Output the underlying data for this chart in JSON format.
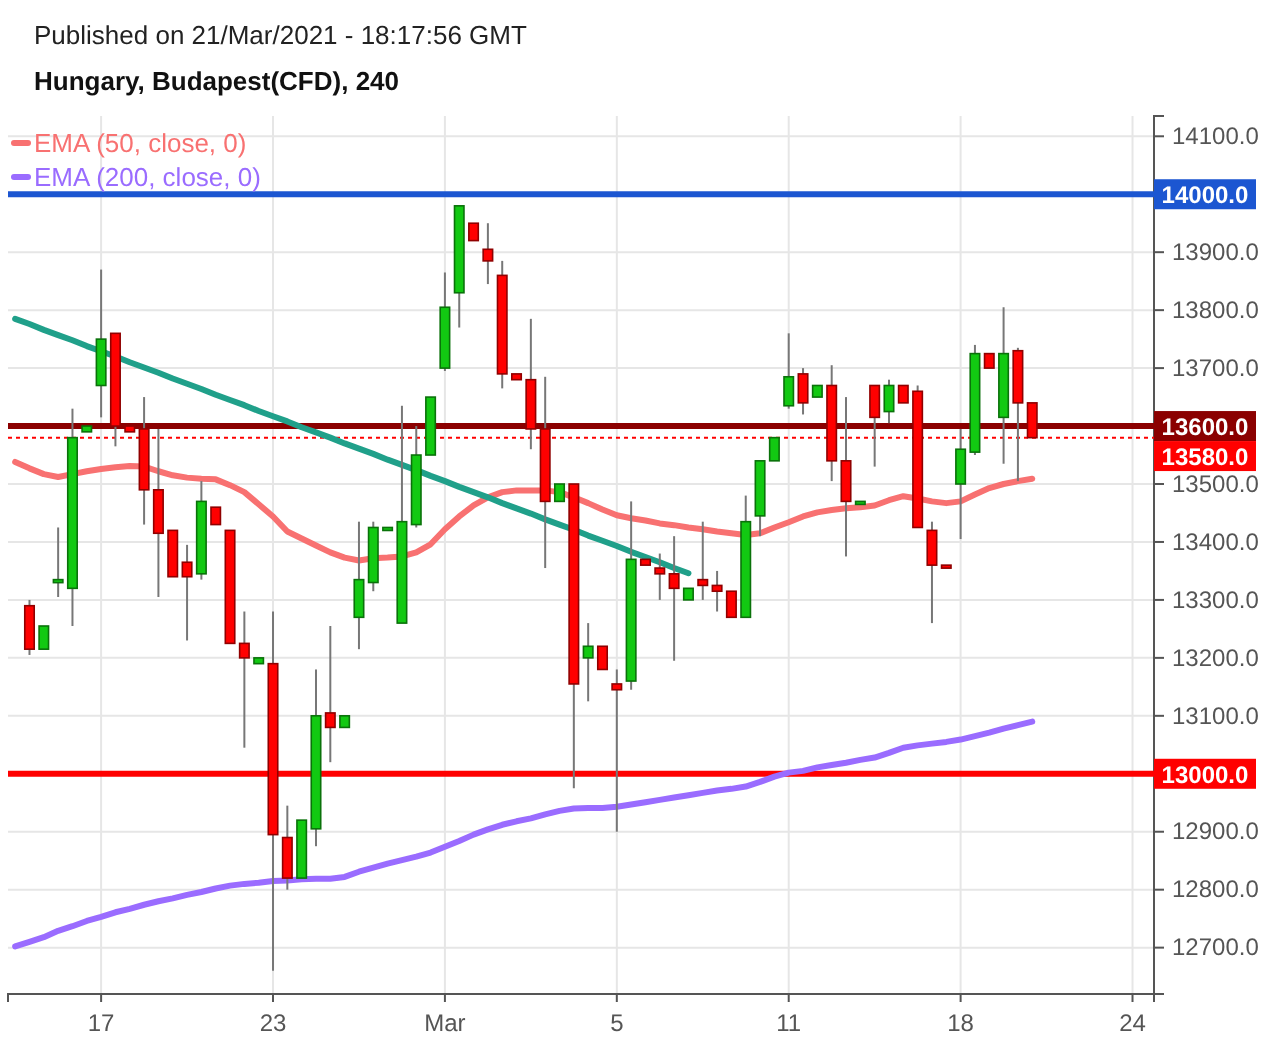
{
  "chart_data": {
    "type": "candlestick",
    "title": "Hungary, Budapest(CFD), 240",
    "annotations": [
      "Published on 21/Mar/2021 - 18:17:56 GMT"
    ],
    "categories": [
      null,
      null,
      null,
      null,
      null,
      null,
      "17",
      null,
      null,
      null,
      null,
      null,
      null,
      null,
      null,
      null,
      null,
      null,
      "23",
      null,
      null,
      null,
      null,
      null,
      null,
      null,
      null,
      null,
      null,
      null,
      "Mar",
      null,
      null,
      null,
      null,
      null,
      null,
      null,
      null,
      null,
      null,
      null,
      "5",
      null,
      null,
      null,
      null,
      null,
      null,
      null,
      null,
      null,
      null,
      null,
      "11",
      null,
      null,
      null,
      null,
      null,
      null,
      null,
      null,
      null,
      null,
      null,
      "18",
      null,
      null,
      null,
      null,
      null,
      null,
      null,
      null,
      null,
      null,
      null,
      "24",
      null
    ],
    "ohlc": [
      null,
      [
        13290,
        13300,
        13205,
        13215
      ],
      [
        13215,
        13255,
        13215,
        13255
      ],
      [
        13335,
        13425,
        13305,
        13335
      ],
      [
        13320,
        13630,
        13255,
        13580
      ],
      [
        13590,
        13600,
        13590,
        13600
      ],
      [
        13670,
        13870,
        13615,
        13750
      ],
      [
        13760,
        13760,
        13565,
        13600
      ],
      [
        13600,
        13600,
        13590,
        13590
      ],
      [
        13595,
        13650,
        13430,
        13490
      ],
      [
        13490,
        13595,
        13305,
        13415
      ],
      [
        13420,
        13420,
        13340,
        13340
      ],
      [
        13365,
        13395,
        13230,
        13340
      ],
      [
        13345,
        13505,
        13335,
        13470
      ],
      [
        13460,
        13460,
        13430,
        13430
      ],
      [
        13420,
        13420,
        13225,
        13225
      ],
      [
        13225,
        13280,
        13045,
        13200
      ],
      [
        13190,
        13200,
        13190,
        13200
      ],
      [
        13190,
        13280,
        12660,
        12895
      ],
      [
        12890,
        12945,
        12800,
        12820
      ],
      [
        12820,
        12920,
        12820,
        12920
      ],
      [
        12905,
        13180,
        12875,
        13100
      ],
      [
        13105,
        13255,
        13020,
        13080
      ],
      [
        13080,
        13100,
        13080,
        13100
      ],
      [
        13270,
        13435,
        13215,
        13335
      ],
      [
        13330,
        13435,
        13315,
        13425
      ],
      [
        13425,
        13425,
        13425,
        13425
      ],
      [
        13260,
        13635,
        13260,
        13435
      ],
      [
        13430,
        13600,
        13425,
        13550
      ],
      [
        13550,
        13650,
        13550,
        13650
      ],
      [
        13700,
        13865,
        13695,
        13805
      ],
      [
        13830,
        13980,
        13770,
        13980
      ],
      [
        13950,
        13950,
        13920,
        13920
      ],
      [
        13905,
        13950,
        13845,
        13885
      ],
      [
        13860,
        13885,
        13665,
        13690
      ],
      [
        13690,
        13690,
        13680,
        13680
      ],
      [
        13680,
        13785,
        13560,
        13595
      ],
      [
        13595,
        13685,
        13355,
        13470
      ],
      [
        13470,
        13500,
        13470,
        13500
      ],
      [
        13500,
        13500,
        12975,
        13155
      ],
      [
        13200,
        13260,
        13125,
        13220
      ],
      [
        13220,
        13220,
        13180,
        13180
      ],
      [
        13155,
        13180,
        12900,
        13145
      ],
      [
        13160,
        13470,
        13145,
        13370
      ],
      [
        13370,
        13370,
        13360,
        13360
      ],
      [
        13355,
        13380,
        13300,
        13345
      ],
      [
        13345,
        13410,
        13195,
        13320
      ],
      [
        13300,
        13320,
        13300,
        13320
      ],
      [
        13335,
        13435,
        13300,
        13325
      ],
      [
        13325,
        13350,
        13280,
        13315
      ],
      [
        13315,
        13315,
        13270,
        13270
      ],
      [
        13270,
        13480,
        13270,
        13435
      ],
      [
        13445,
        13540,
        13410,
        13540
      ],
      [
        13540,
        13580,
        13540,
        13580
      ],
      [
        13635,
        13760,
        13630,
        13685
      ],
      [
        13690,
        13700,
        13620,
        13640
      ],
      [
        13650,
        13670,
        13650,
        13670
      ],
      [
        13670,
        13705,
        13505,
        13540
      ],
      [
        13540,
        13650,
        13375,
        13470
      ],
      [
        13470,
        13470,
        13470,
        13470
      ],
      [
        13670,
        13670,
        13530,
        13615
      ],
      [
        13625,
        13680,
        13605,
        13670
      ],
      [
        13670,
        13670,
        13640,
        13640
      ],
      [
        13660,
        13670,
        13425,
        13425
      ],
      [
        13420,
        13435,
        13260,
        13360
      ],
      [
        13360,
        13360,
        13355,
        13355
      ],
      [
        13500,
        13595,
        13405,
        13560
      ],
      [
        13555,
        13740,
        13550,
        13725
      ],
      [
        13725,
        13725,
        13700,
        13700
      ],
      [
        13615,
        13805,
        13535,
        13725
      ],
      [
        13730,
        13735,
        13505,
        13640
      ],
      [
        13640,
        13640,
        13580,
        13580
      ],
      null,
      null,
      null,
      null,
      null,
      null,
      null,
      null
    ],
    "colors": [
      null,
      "#ff0000",
      "#12c912",
      "#12c912",
      "#12c912",
      "#12c912",
      "#12c912",
      "#ff0000",
      "#ff0000",
      "#ff0000",
      "#ff0000",
      "#ff0000",
      "#ff0000",
      "#12c912",
      "#ff0000",
      "#ff0000",
      "#ff0000",
      "#12c912",
      "#ff0000",
      "#ff0000",
      "#12c912",
      "#12c912",
      "#ff0000",
      "#12c912",
      "#12c912",
      "#12c912",
      "#12c912",
      "#12c912",
      "#12c912",
      "#12c912",
      "#12c912",
      "#12c912",
      "#ff0000",
      "#ff0000",
      "#ff0000",
      "#ff0000",
      "#ff0000",
      "#ff0000",
      "#12c912",
      "#ff0000",
      "#12c912",
      "#ff0000",
      "#ff0000",
      "#12c912",
      "#ff0000",
      "#ff0000",
      "#ff0000",
      "#12c912",
      "#ff0000",
      "#ff0000",
      "#ff0000",
      "#12c912",
      "#12c912",
      "#12c912",
      "#12c912",
      "#ff0000",
      "#12c912",
      "#ff0000",
      "#ff0000",
      "#12c912",
      "#ff0000",
      "#12c912",
      "#ff0000",
      "#ff0000",
      "#ff0000",
      "#ff0000",
      "#12c912",
      "#12c912",
      "#ff0000",
      "#12c912",
      "#ff0000",
      "#ff0000",
      null,
      null,
      null,
      null,
      null,
      null,
      null,
      null
    ],
    "series": [
      {
        "name": "EMA (50, close, 0)",
        "type": "line",
        "color": "#f87171",
        "values": [
          13538,
          13527,
          13517,
          13512,
          13517,
          13522,
          13526,
          13529,
          13531,
          13530,
          13522,
          13515,
          13511,
          13509,
          13508,
          13498,
          13486,
          13465,
          13444,
          13418,
          13406,
          13394,
          13382,
          13373,
          13368,
          13372,
          13373,
          13375,
          13382,
          13396,
          13422,
          13444,
          13463,
          13477,
          13486,
          13489,
          13489,
          13489,
          13486,
          13477,
          13467,
          13456,
          13446,
          13441,
          13437,
          13432,
          13429,
          13425,
          13422,
          13418,
          13415,
          13412,
          13415,
          13425,
          13434,
          13444,
          13451,
          13455,
          13458,
          13460,
          13463,
          13472,
          13479,
          13475,
          13470,
          13467,
          13470,
          13482,
          13493,
          13500,
          13505,
          13509,
          null,
          null,
          null,
          null,
          null,
          null,
          null,
          null
        ]
      },
      {
        "name": "EMA (200, close, 0)",
        "type": "line",
        "color": "#9a6cff",
        "values": [
          12702,
          12710,
          12718,
          12729,
          12737,
          12746,
          12753,
          12761,
          12767,
          12774,
          12780,
          12785,
          12791,
          12796,
          12802,
          12807,
          12810,
          12812,
          12815,
          12816,
          12818,
          12819,
          12819,
          12822,
          12831,
          12838,
          12845,
          12851,
          12857,
          12864,
          12874,
          12884,
          12895,
          12904,
          12912,
          12918,
          12923,
          12930,
          12936,
          12940,
          12941,
          12941,
          12943,
          12947,
          12951,
          12955,
          12959,
          12963,
          12967,
          12971,
          12974,
          12978,
          12986,
          12995,
          13002,
          13005,
          13011,
          13015,
          13019,
          13024,
          13028,
          13036,
          13045,
          13049,
          13052,
          13055,
          13059,
          13065,
          13071,
          13078,
          13084,
          13090,
          null,
          null,
          null,
          null,
          null,
          null,
          null,
          null
        ]
      },
      {
        "type": "line",
        "color": "#20a08a",
        "values": [
          13785,
          13776,
          13766,
          13757,
          13748,
          13738,
          13729,
          13720,
          13710,
          13701,
          13692,
          13682,
          13673,
          13664,
          13654,
          13645,
          13636,
          13626,
          13617,
          13608,
          13598,
          13589,
          13580,
          13570,
          13561,
          13552,
          13542,
          13533,
          13524,
          13514,
          13505,
          13495,
          13486,
          13477,
          13467,
          13458,
          13449,
          13439,
          13430,
          13421,
          13411,
          13402,
          13393,
          13383,
          13374,
          13365,
          13355,
          13346,
          null,
          null,
          null,
          null,
          null,
          null,
          null,
          null,
          null,
          null,
          null,
          null,
          null,
          null,
          null,
          null,
          null,
          null,
          null,
          null,
          null,
          null,
          null,
          null,
          null,
          null,
          null,
          null,
          null,
          null,
          null,
          null
        ]
      }
    ],
    "ylim": [
      12620,
      14135
    ],
    "yticks": [
      {
        "value": 12700,
        "label": "12700.0"
      },
      {
        "value": 12800,
        "label": "12800.0"
      },
      {
        "value": 12900,
        "label": "12900.0"
      },
      {
        "value": 13000,
        "label": null
      },
      {
        "value": 13100,
        "label": "13100.0"
      },
      {
        "value": 13200,
        "label": "13200.0"
      },
      {
        "value": 13300,
        "label": "13300.0"
      },
      {
        "value": 13400,
        "label": "13400.0"
      },
      {
        "value": 13500,
        "label": "13500.0"
      },
      {
        "value": 13600,
        "label": null
      },
      {
        "value": 13700,
        "label": "13700.0"
      },
      {
        "value": 13800,
        "label": "13800.0"
      },
      {
        "value": 13900,
        "label": "13900.0"
      },
      {
        "value": 14000,
        "label": null
      },
      {
        "value": 14100,
        "label": "14100.0"
      }
    ],
    "ref_lines": [
      {
        "axis": "y",
        "value": 14000,
        "label": "14000.0",
        "color": "#1c56d1",
        "line_style": "solid"
      },
      {
        "axis": "y",
        "value": 13600,
        "label": "13600.0",
        "color": "#8b0000",
        "line_style": "solid"
      },
      {
        "axis": "y",
        "value": 13580,
        "label": "13580.0",
        "color": "#ff0000",
        "line_style": "dotted"
      },
      {
        "axis": "y",
        "value": 13000,
        "label": "13000.0",
        "color": "#ff0000",
        "line_style": "solid"
      }
    ],
    "grid": true,
    "legend": "top left"
  }
}
